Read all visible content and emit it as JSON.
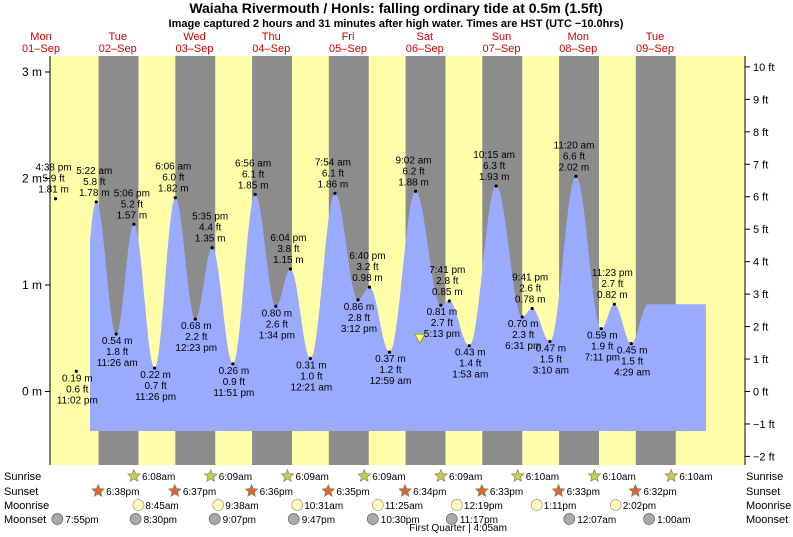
{
  "title": "Waiaha Rivermouth / Honls: falling  ordinary tide at 0.5m (1.5ft)",
  "subtitle": "Image captured 2 hours and 31 minutes after high water. Times are HST (UTC −10.0hrs)",
  "days": [
    {
      "dow": "Mon",
      "date": "01–Sep"
    },
    {
      "dow": "Tue",
      "date": "02–Sep"
    },
    {
      "dow": "Wed",
      "date": "03–Sep"
    },
    {
      "dow": "Thu",
      "date": "04–Sep"
    },
    {
      "dow": "Fri",
      "date": "05–Sep"
    },
    {
      "dow": "Sat",
      "date": "06–Sep"
    },
    {
      "dow": "Sun",
      "date": "07–Sep"
    },
    {
      "dow": "Mon",
      "date": "08–Sep"
    },
    {
      "dow": "Tue",
      "date": "09–Sep"
    }
  ],
  "colors": {
    "day": "#ffffaa",
    "night": "#8c8c8c",
    "water": "#99aaff",
    "date_text": "#cc0000",
    "marker": "#ffff66"
  },
  "chart_data": {
    "type": "area",
    "y_left": {
      "unit": "m",
      "ylim": [
        -0.6,
        3.1
      ],
      "ticks": [
        "3 m",
        "2 m",
        "1 m",
        "0 m"
      ],
      "tick_values": [
        3,
        2,
        1,
        0
      ]
    },
    "y_right": {
      "unit": "ft",
      "ticks": [
        "10 ft",
        "9 ft",
        "8 ft",
        "7 ft",
        "6 ft",
        "5 ft",
        "4 ft",
        "3 ft",
        "2 ft",
        "1 ft",
        "0 ft",
        "−1 ft",
        "−2 ft"
      ],
      "tick_values": [
        10,
        9,
        8,
        7,
        6,
        5,
        4,
        3,
        2,
        1,
        0,
        -1,
        -2
      ]
    },
    "current_level_m": 0.5,
    "nights": [
      {
        "from": 0.75,
        "to": 1.27
      },
      {
        "from": 1.75,
        "to": 2.27
      },
      {
        "from": 2.75,
        "to": 3.27
      },
      {
        "from": 3.75,
        "to": 4.27
      },
      {
        "from": 4.75,
        "to": 5.27
      },
      {
        "from": 5.75,
        "to": 6.27
      },
      {
        "from": 6.75,
        "to": 7.27
      },
      {
        "from": 7.75,
        "to": 8.27
      }
    ],
    "tides": [
      {
        "day": 0.19,
        "height_m": 1.81,
        "time": "4:38 pm",
        "ft": "5.9 ft",
        "m": "1.81 m"
      },
      {
        "day": 0.46,
        "height_m": 0.19,
        "time": "11:02 pm",
        "ft": "0.6 ft",
        "m": "0.19 m"
      },
      {
        "day": 0.72,
        "height_m": 1.78,
        "time": "5:22 am",
        "ft": "5.8 ft",
        "m": "1.78 m"
      },
      {
        "day": 0.98,
        "height_m": 0.54,
        "time": "11:26 am",
        "ft": "1.8 ft",
        "m": "0.54 m"
      },
      {
        "day": 1.21,
        "height_m": 1.57,
        "time": "5:06 pm",
        "ft": "5.2 ft",
        "m": "1.57 m"
      },
      {
        "day": 1.48,
        "height_m": 0.22,
        "time": "11:26 pm",
        "ft": "0.7 ft",
        "m": "0.22 m"
      },
      {
        "day": 1.75,
        "height_m": 1.82,
        "time": "6:06 am",
        "ft": "6.0 ft",
        "m": "1.82 m"
      },
      {
        "day": 2.01,
        "height_m": 0.68,
        "time": "12:23 pm",
        "ft": "2.2 ft",
        "m": "0.68 m"
      },
      {
        "day": 2.23,
        "height_m": 1.35,
        "time": "5:35 pm",
        "ft": "4.4 ft",
        "m": "1.35 m"
      },
      {
        "day": 2.5,
        "height_m": 0.26,
        "time": "11:51 pm",
        "ft": "0.9 ft",
        "m": "0.26 m"
      },
      {
        "day": 2.79,
        "height_m": 1.85,
        "time": "6:56 am",
        "ft": "6.1 ft",
        "m": "1.85 m"
      },
      {
        "day": 3.06,
        "height_m": 0.8,
        "time": "1:34 pm",
        "ft": "2.6 ft",
        "m": "0.80 m"
      },
      {
        "day": 3.25,
        "height_m": 1.15,
        "time": "6:04 pm",
        "ft": "3.8 ft",
        "m": "1.15 m"
      },
      {
        "day": 3.51,
        "height_m": 0.31,
        "time": "12:21 am",
        "ft": "1.0 ft",
        "m": "0.31 m"
      },
      {
        "day": 3.83,
        "height_m": 1.86,
        "time": "7:54 am",
        "ft": "6.1 ft",
        "m": "1.86 m"
      },
      {
        "day": 4.13,
        "height_m": 0.86,
        "time": "3:12 pm",
        "ft": "2.8 ft",
        "m": "0.86 m"
      },
      {
        "day": 4.28,
        "height_m": 0.98,
        "time": "6:40 pm",
        "ft": "3.2 ft",
        "m": "0.98 m"
      },
      {
        "day": 4.54,
        "height_m": 0.37,
        "time": "12:59 am",
        "ft": "1.2 ft",
        "m": "0.37 m"
      },
      {
        "day": 4.88,
        "height_m": 1.88,
        "time": "9:02 am",
        "ft": "6.2 ft",
        "m": "1.88 m"
      },
      {
        "day": 5.21,
        "height_m": 0.81,
        "time": "5:13 pm",
        "ft": "2.7 ft",
        "m": "0.81 m"
      },
      {
        "day": 5.32,
        "height_m": 0.85,
        "time": "7:41 pm",
        "ft": "2.8 ft",
        "m": "0.85 m"
      },
      {
        "day": 5.58,
        "height_m": 0.43,
        "time": "1:53 am",
        "ft": "1.4 ft",
        "m": "0.43 m"
      },
      {
        "day": 5.93,
        "height_m": 1.93,
        "time": "10:15 am",
        "ft": "6.3 ft",
        "m": "1.93 m"
      },
      {
        "day": 6.27,
        "height_m": 0.7,
        "time": "6:31 pm",
        "ft": "2.3 ft",
        "m": "0.70 m"
      },
      {
        "day": 6.4,
        "height_m": 0.78,
        "time": "9:41 pm",
        "ft": "2.6 ft",
        "m": "0.78 m"
      },
      {
        "day": 6.63,
        "height_m": 0.47,
        "time": "3:10 am",
        "ft": "1.5 ft",
        "m": "0.47 m"
      },
      {
        "day": 6.97,
        "height_m": 2.02,
        "time": "11:20 am",
        "ft": "6.6 ft",
        "m": "2.02 m"
      },
      {
        "day": 7.3,
        "height_m": 0.59,
        "time": "7:11 pm",
        "ft": "1.9 ft",
        "m": "0.59 m"
      },
      {
        "day": 7.47,
        "height_m": 0.82,
        "time": "11:23 pm",
        "ft": "2.7 ft",
        "m": "0.82 m"
      },
      {
        "day": 7.69,
        "height_m": 0.45,
        "time": "4:29 am",
        "ft": "1.5 ft",
        "m": "0.45 m"
      }
    ],
    "sunrise": [
      {
        "day": 1.25,
        "time": "6:08am"
      },
      {
        "day": 2.25,
        "time": "6:09am"
      },
      {
        "day": 3.25,
        "time": "6:09am"
      },
      {
        "day": 4.25,
        "time": "6:09am"
      },
      {
        "day": 5.25,
        "time": "6:09am"
      },
      {
        "day": 6.25,
        "time": "6:10am"
      },
      {
        "day": 7.25,
        "time": "6:10am"
      },
      {
        "day": 8.25,
        "time": "6:10am"
      }
    ],
    "sunset": [
      {
        "day": 0.77,
        "time": "6:38pm"
      },
      {
        "day": 1.77,
        "time": "6:37pm"
      },
      {
        "day": 2.77,
        "time": "6:36pm"
      },
      {
        "day": 3.77,
        "time": "6:35pm"
      },
      {
        "day": 4.77,
        "time": "6:34pm"
      },
      {
        "day": 5.77,
        "time": "6:33pm"
      },
      {
        "day": 6.77,
        "time": "6:33pm"
      },
      {
        "day": 7.77,
        "time": "6:32pm"
      }
    ],
    "moonrise": [
      {
        "day": 1.36,
        "time": "8:45am"
      },
      {
        "day": 2.4,
        "time": "9:38am"
      },
      {
        "day": 3.43,
        "time": "10:31am"
      },
      {
        "day": 4.48,
        "time": "11:25am"
      },
      {
        "day": 5.51,
        "time": "12:19pm"
      },
      {
        "day": 6.55,
        "time": "1:11pm"
      },
      {
        "day": 7.58,
        "time": "2:02pm"
      }
    ],
    "moonset": [
      {
        "day": 0.33,
        "time": "7:55pm"
      },
      {
        "day": 1.35,
        "time": "8:30pm"
      },
      {
        "day": 2.38,
        "time": "9:07pm"
      },
      {
        "day": 3.41,
        "time": "9:47pm"
      },
      {
        "day": 4.44,
        "time": "10:30pm"
      },
      {
        "day": 5.47,
        "time": "11:17pm"
      },
      {
        "day": 7.0,
        "time": "12:07am"
      },
      {
        "day": 8.04,
        "time": "1:00am"
      }
    ],
    "row_labels": [
      "Sunrise",
      "Sunset",
      "Moonrise",
      "Moonset"
    ],
    "moon_phase": {
      "day": 5.5,
      "label": "First Quarter | 4:05am"
    }
  }
}
